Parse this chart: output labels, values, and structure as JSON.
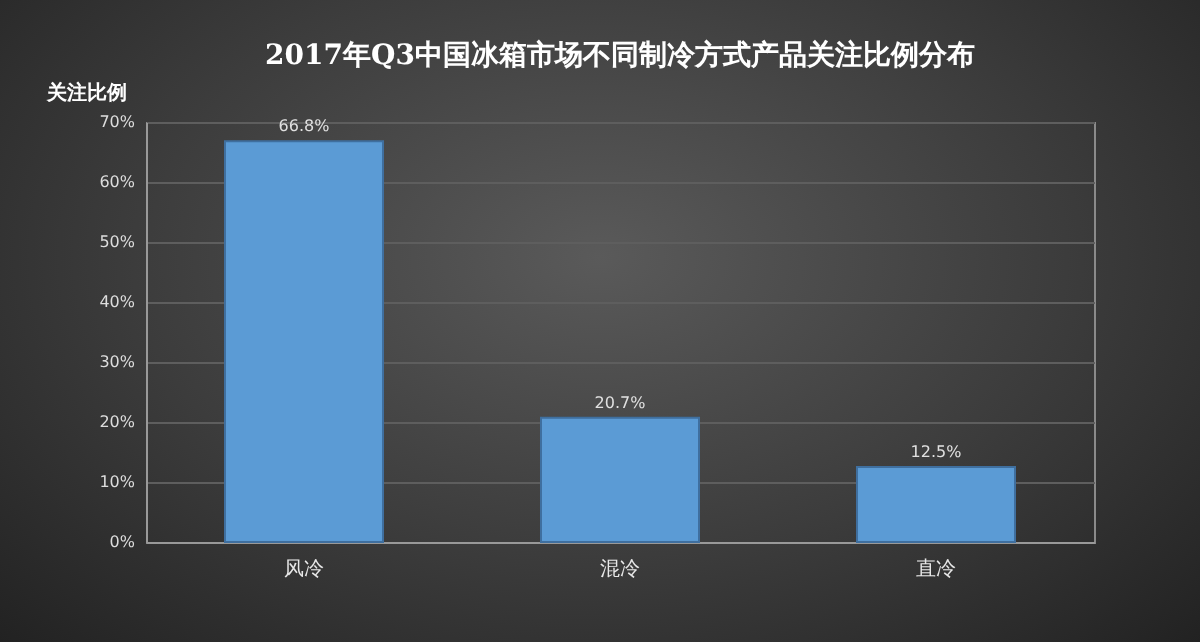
{
  "chart_data": {
    "type": "bar",
    "title": "2017年Q3中国冰箱市场不同制冷方式产品关注比例分布",
    "ylabel": "关注比例",
    "categories": [
      "风冷",
      "混冷",
      "直冷"
    ],
    "values": [
      66.8,
      20.7,
      12.5
    ],
    "value_labels": [
      "66.8%",
      "20.7%",
      "12.5%"
    ],
    "color": "#5b9bd5",
    "ylim": [
      0,
      70
    ],
    "yticks": [
      {
        "value": 0,
        "label": "0%"
      },
      {
        "value": 10,
        "label": "10%"
      },
      {
        "value": 20,
        "label": "20%"
      },
      {
        "value": 30,
        "label": "30%"
      },
      {
        "value": 40,
        "label": "40%"
      },
      {
        "value": 50,
        "label": "50%"
      },
      {
        "value": 60,
        "label": "60%"
      },
      {
        "value": 70,
        "label": "70%"
      }
    ],
    "grid": "y"
  }
}
